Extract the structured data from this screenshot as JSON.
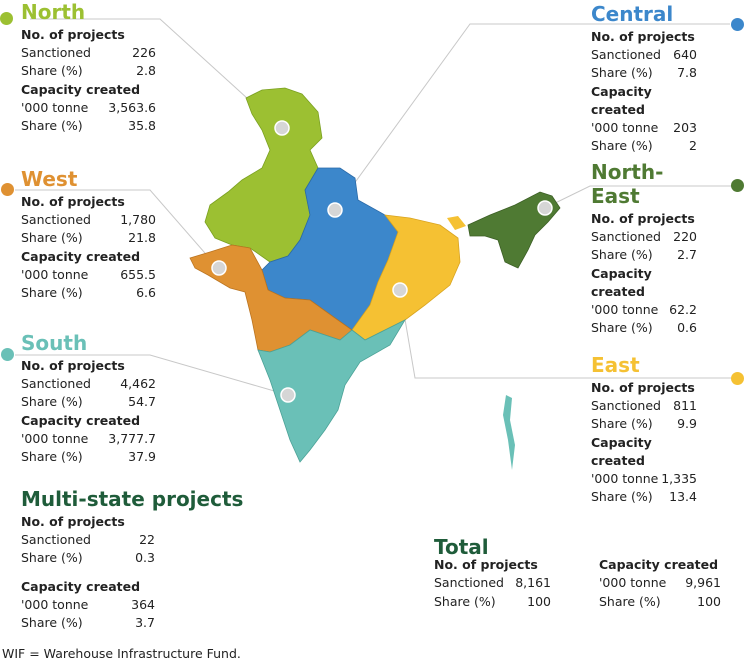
{
  "colors": {
    "north": "#9cc032",
    "central": "#3c87cb",
    "north_east": "#4f7a33",
    "west": "#df9132",
    "south": "#6ac0b7",
    "east": "#f5c133",
    "multi": "#1f5c3a",
    "text": "#222222"
  },
  "labels": {
    "projects_heading": "No. of projects",
    "sanctioned": "Sanctioned",
    "share": "Share (%)",
    "capacity_heading": "Capacity created",
    "tonne": "'000 tonne"
  },
  "regions": {
    "north": {
      "name": "North",
      "sanctioned": "226",
      "share_projects": "2.8",
      "tonne": "3,563.6",
      "share_capacity": "35.8"
    },
    "central": {
      "name": "Central",
      "sanctioned": "640",
      "share_projects": "7.8",
      "tonne": "203",
      "share_capacity": "2"
    },
    "north_east": {
      "name": "North-East",
      "sanctioned": "220",
      "share_projects": "2.7",
      "tonne": "62.2",
      "share_capacity": "0.6"
    },
    "west": {
      "name": "West",
      "sanctioned": "1,780",
      "share_projects": "21.8",
      "tonne": "655.5",
      "share_capacity": "6.6"
    },
    "south": {
      "name": "South",
      "sanctioned": "4,462",
      "share_projects": "54.7",
      "tonne": "3,777.7",
      "share_capacity": "37.9"
    },
    "east": {
      "name": "East",
      "sanctioned": "811",
      "share_projects": "9.9",
      "tonne": "1,335",
      "share_capacity": "13.4"
    },
    "multi": {
      "name": "Multi-state projects",
      "sanctioned": "22",
      "share_projects": "0.3",
      "tonne": "364",
      "share_capacity": "3.7"
    }
  },
  "total": {
    "name": "Total",
    "sanctioned": "8,161",
    "share_projects": "100",
    "tonne": "9,961",
    "share_capacity": "100"
  },
  "footnote": "WIF = Warehouse Infrastructure Fund."
}
